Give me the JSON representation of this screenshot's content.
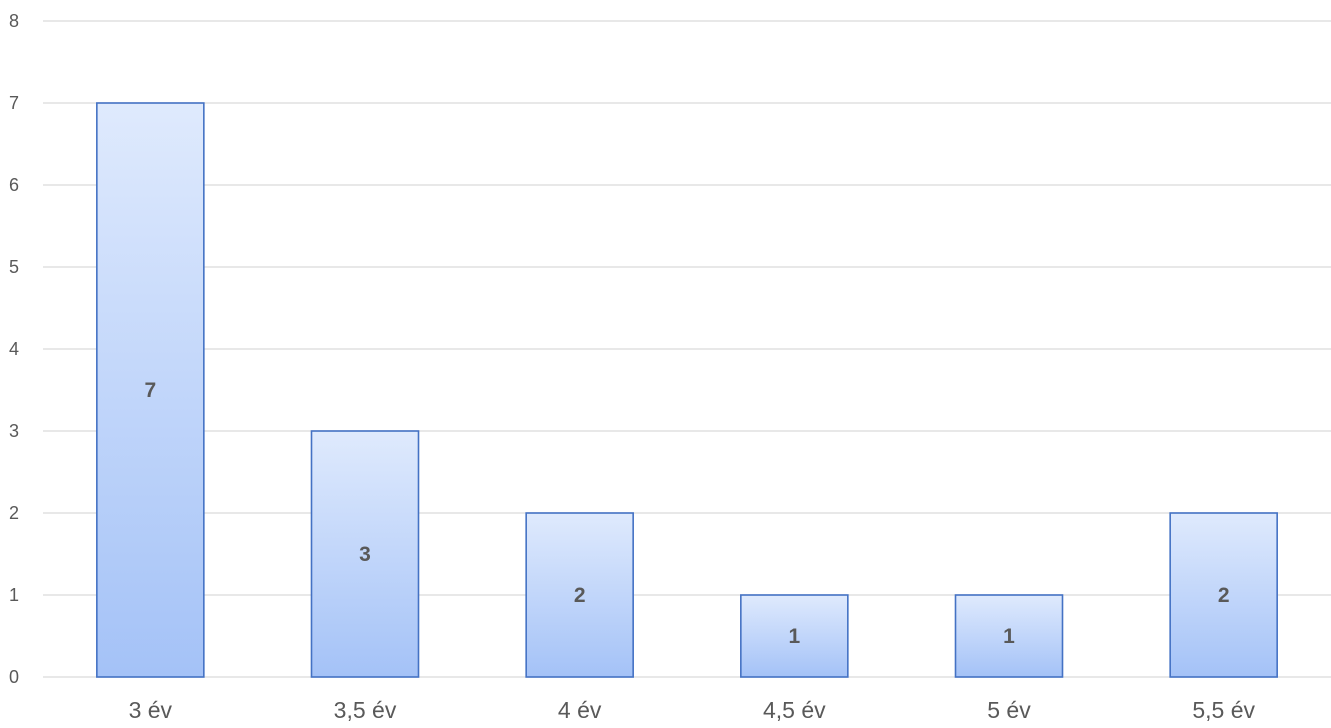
{
  "chart_data": {
    "type": "bar",
    "categories": [
      "3 év",
      "3,5 év",
      "4 év",
      "4,5 év",
      "5 év",
      "5,5 év"
    ],
    "values": [
      7,
      3,
      2,
      1,
      1,
      2
    ],
    "data_labels": [
      "7",
      "3",
      "2",
      "1",
      "1",
      "2"
    ],
    "title": "",
    "xlabel": "",
    "ylabel": "",
    "ylim": [
      0,
      8
    ],
    "yticks": [
      "0",
      "1",
      "2",
      "3",
      "4",
      "5",
      "6",
      "7",
      "8"
    ],
    "grid": true,
    "legend": "none",
    "colors": {
      "bar_fill_top": "#dfeafd",
      "bar_fill_bottom": "#a4c2f7",
      "bar_border": "#4472c4",
      "gridline": "#d9d9d9",
      "text": "#595959"
    }
  }
}
